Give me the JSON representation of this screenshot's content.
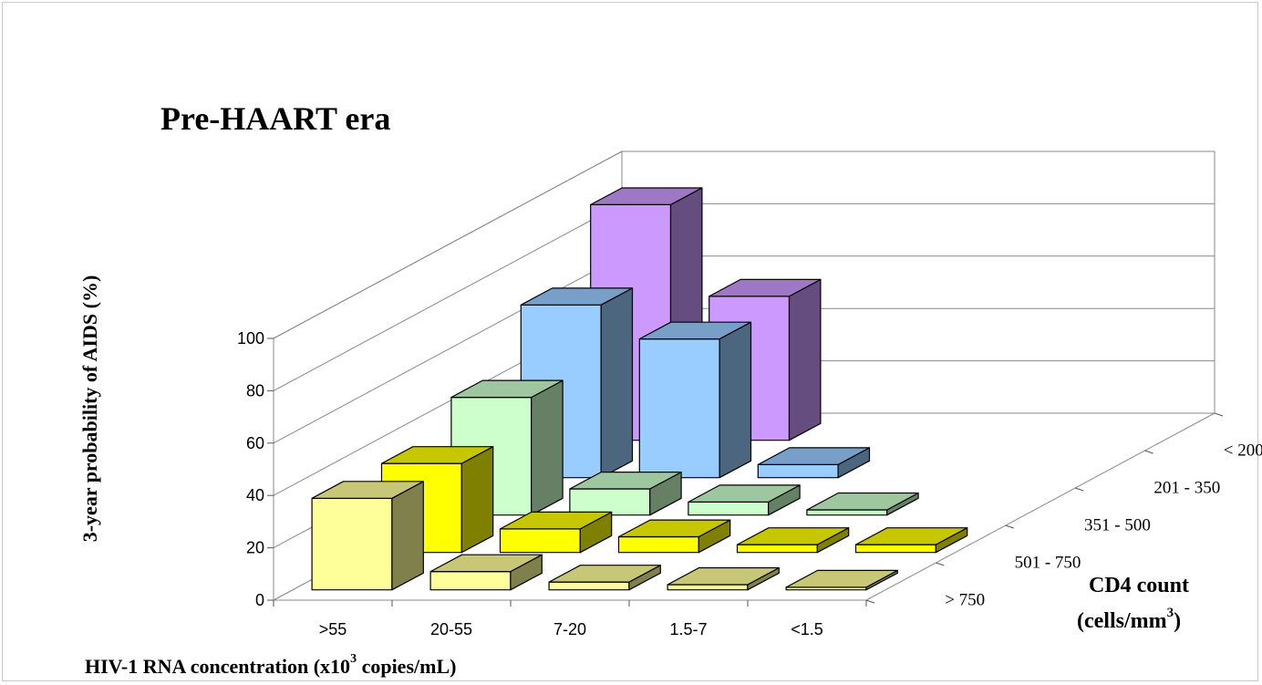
{
  "chart_data": {
    "type": "bar3d",
    "title": "Pre-HAART era",
    "xlabel": {
      "prefix": "HIV-1 RNA concentration (x10",
      "superscript": "3",
      "suffix": " copies/mL)"
    },
    "ylabel": "3-year probability of AIDS (%)",
    "zlabel": {
      "line1": "CD4 count",
      "line2_prefix": "(cells/mm",
      "line2_superscript": "3",
      "line2_suffix": ")"
    },
    "ylim": [
      0,
      100
    ],
    "yticks": [
      0,
      20,
      40,
      60,
      80,
      100
    ],
    "categories": [
      ">55",
      "20-55",
      "7-20",
      "1.5-7",
      "<1.5"
    ],
    "series": [
      {
        "name": "> 750",
        "color": "#ffff99",
        "values": [
          35,
          7,
          3,
          2,
          1
        ]
      },
      {
        "name": "501 - 750",
        "color": "#ffff00",
        "values": [
          34,
          9,
          6,
          3,
          3
        ]
      },
      {
        "name": "351 - 500",
        "color": "#ccffcc",
        "values": [
          45,
          10,
          5,
          2,
          null
        ]
      },
      {
        "name": "201 - 350",
        "color": "#99ccff",
        "values": [
          66,
          53,
          5,
          null,
          null
        ]
      },
      {
        "name": "< 200",
        "color": "#cc99ff",
        "values": [
          90,
          55,
          null,
          null,
          null
        ]
      }
    ],
    "grid": true
  }
}
